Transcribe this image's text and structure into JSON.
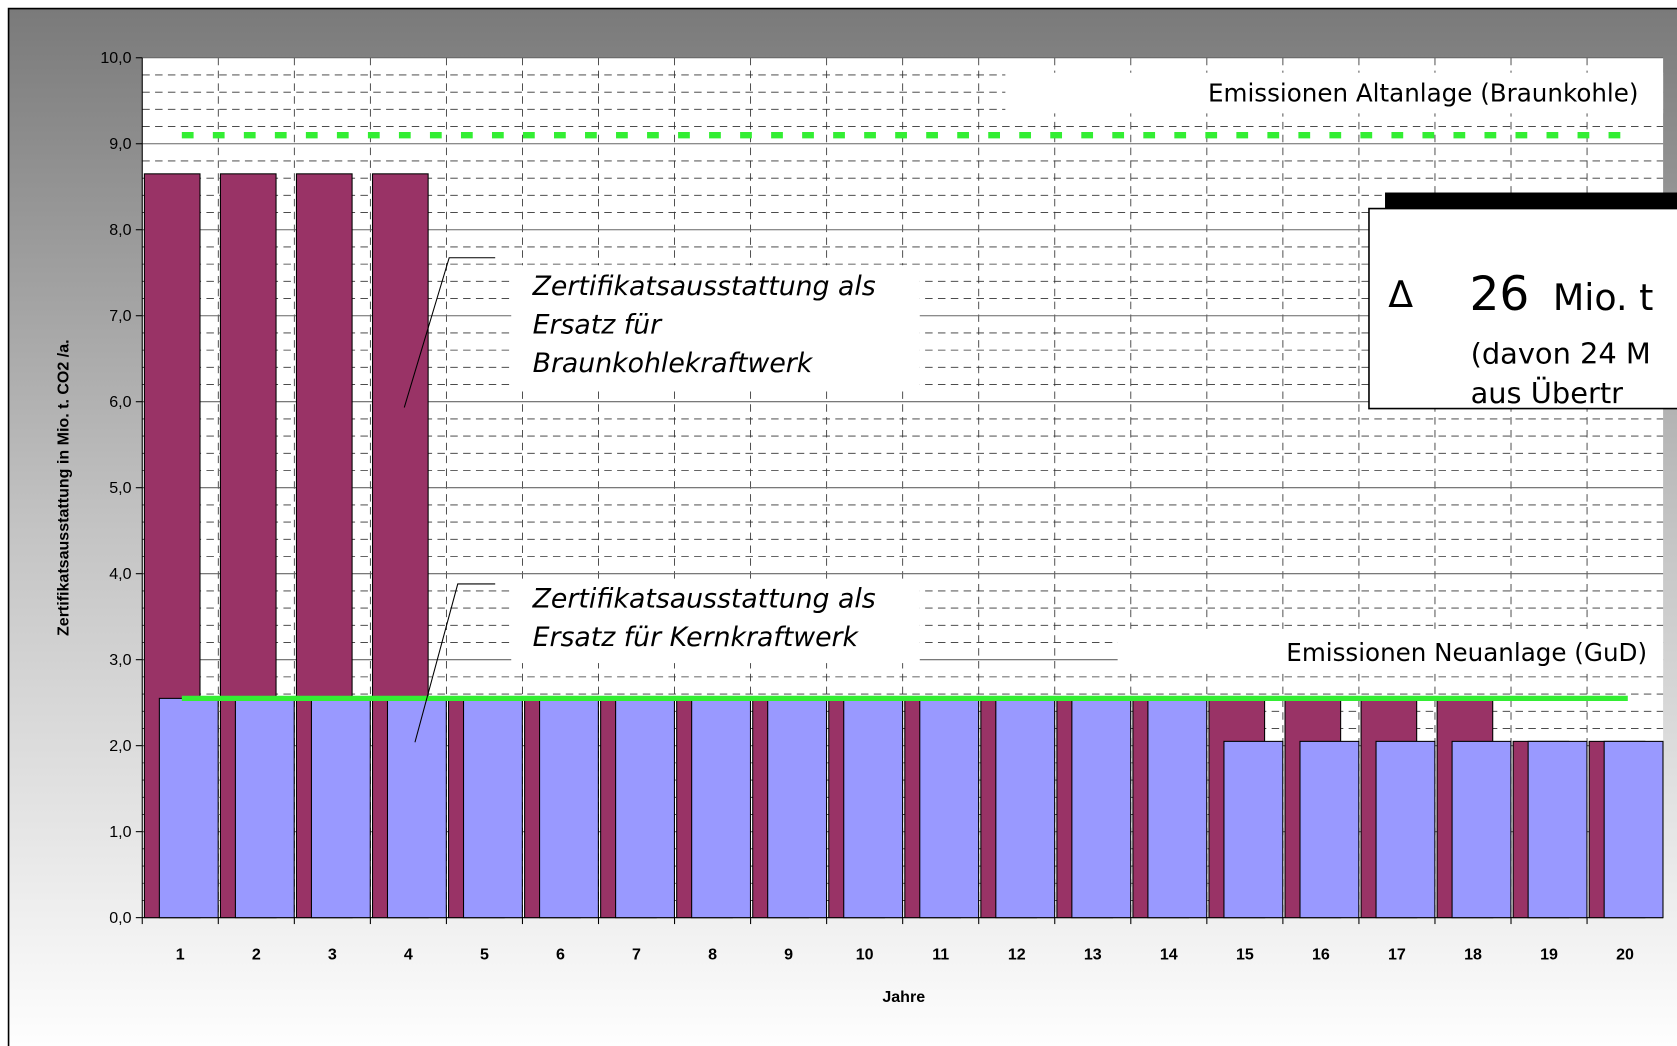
{
  "chart_data": {
    "type": "bar",
    "x_label": "Jahre",
    "y_label": "Zertifikatsausstattung in Mio. t. CO2 /a.",
    "categories": [
      "1",
      "2",
      "3",
      "4",
      "5",
      "6",
      "7",
      "8",
      "9",
      "10",
      "11",
      "12",
      "13",
      "14",
      "15",
      "16",
      "17",
      "18",
      "19",
      "20"
    ],
    "series": [
      {
        "color": "#993366",
        "values": [
          8.65,
          8.65,
          8.65,
          8.65,
          2.55,
          2.55,
          2.55,
          2.55,
          2.55,
          2.55,
          2.55,
          2.55,
          2.55,
          2.55,
          2.55,
          2.55,
          2.55,
          2.55,
          2.05,
          2.05
        ]
      },
      {
        "color": "#9999ff",
        "values": [
          2.55,
          2.55,
          2.55,
          2.55,
          2.55,
          2.55,
          2.55,
          2.55,
          2.55,
          2.55,
          2.55,
          2.55,
          2.55,
          2.55,
          2.05,
          2.05,
          2.05,
          2.05,
          2.05,
          2.05
        ]
      }
    ],
    "ylim": [
      0,
      10
    ],
    "yticks": [
      {
        "value": 0,
        "label": "0,0"
      },
      {
        "value": 1,
        "label": "1,0"
      },
      {
        "value": 2,
        "label": "2,0"
      },
      {
        "value": 3,
        "label": "3,0"
      },
      {
        "value": 4,
        "label": "4,0"
      },
      {
        "value": 5,
        "label": "5,0"
      },
      {
        "value": 6,
        "label": "6,0"
      },
      {
        "value": 7,
        "label": "7,0"
      },
      {
        "value": 8,
        "label": "8,0"
      },
      {
        "value": 9,
        "label": "9,0"
      },
      {
        "value": 10,
        "label": "10,0"
      }
    ],
    "yminorticks": [
      0.2,
      0.4,
      0.6,
      0.8,
      1.2,
      1.4,
      1.6,
      1.8,
      2.2,
      2.4,
      2.6,
      2.8,
      3.2,
      3.4,
      3.6,
      3.8,
      4.2,
      4.4,
      4.6,
      4.8,
      5.2,
      5.4,
      5.6,
      5.8,
      6.2,
      6.4,
      6.6,
      6.8,
      7.2,
      7.4,
      7.6,
      7.8,
      8.2,
      8.4,
      8.6,
      8.8,
      9.2,
      9.4,
      9.6,
      9.8
    ],
    "grid": true,
    "reference_lines": [
      {
        "label": "Emissionen Altanlage (Braunkohle)",
        "value": 9.1,
        "color": "#33ee33",
        "style": "dotted"
      },
      {
        "label": "Emissionen Neuanlage (GuD)",
        "value": 2.55,
        "color": "#33ee33",
        "style": "solid"
      }
    ],
    "annotations": [
      {
        "lines": [
          "Zertifikatsausstattung als",
          "Ersatz für",
          "Braunkohlekraftwerk"
        ]
      },
      {
        "lines": [
          "Zertifikatsausstattung als",
          "Ersatz für Kernkraftwerk"
        ]
      }
    ],
    "callout": {
      "symbol": "Δ",
      "number": "26",
      "unit": "Mio. t",
      "lines": [
        "(davon 24 M",
        "aus Übertr"
      ]
    }
  }
}
